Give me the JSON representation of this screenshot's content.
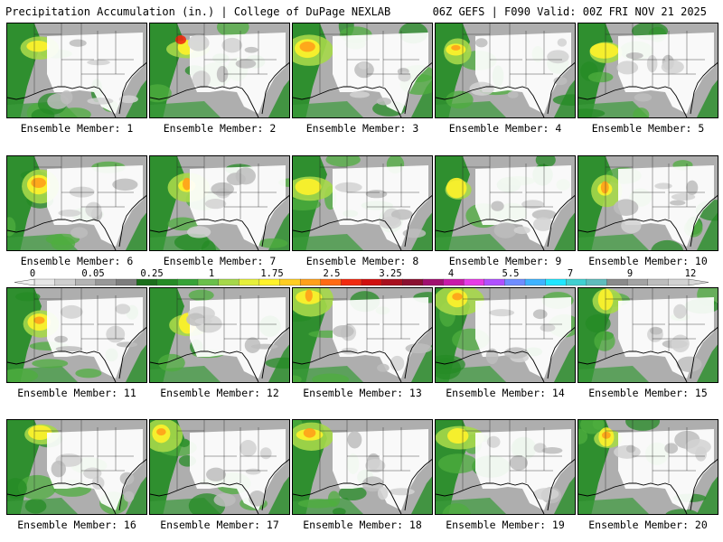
{
  "header": {
    "left": "Precipitation Accumulation (in.) | College of DuPage NEXLAB",
    "right": "06Z GEFS | F090 Valid: 00Z FRI NOV 21 2025"
  },
  "panels": [
    {
      "label": "Ensemble Member: 1"
    },
    {
      "label": "Ensemble Member: 2"
    },
    {
      "label": "Ensemble Member: 3"
    },
    {
      "label": "Ensemble Member: 4"
    },
    {
      "label": "Ensemble Member: 5"
    },
    {
      "label": "Ensemble Member: 6"
    },
    {
      "label": "Ensemble Member: 7"
    },
    {
      "label": "Ensemble Member: 8"
    },
    {
      "label": "Ensemble Member: 9"
    },
    {
      "label": "Ensemble Member: 10"
    },
    {
      "label": "Ensemble Member: 11"
    },
    {
      "label": "Ensemble Member: 12"
    },
    {
      "label": "Ensemble Member: 13"
    },
    {
      "label": "Ensemble Member: 14"
    },
    {
      "label": "Ensemble Member: 15"
    },
    {
      "label": "Ensemble Member: 16"
    },
    {
      "label": "Ensemble Member: 17"
    },
    {
      "label": "Ensemble Member: 18"
    },
    {
      "label": "Ensemble Member: 19"
    },
    {
      "label": "Ensemble Member: 20"
    }
  ],
  "legend": {
    "labels": [
      "0",
      "0.05",
      "0.25",
      "1",
      "1.75",
      "2.5",
      "3.25",
      "4",
      "5.5",
      "7",
      "9",
      "12"
    ],
    "colors": [
      "#e6e6e6",
      "#cfcfcf",
      "#b4b4b4",
      "#989898",
      "#7d7d7d",
      "#1b6e1b",
      "#258b25",
      "#37a337",
      "#6ac04a",
      "#a6d84a",
      "#e6ef3a",
      "#fff22a",
      "#ffcd22",
      "#ffa01a",
      "#ff6a14",
      "#f02a10",
      "#d00f0f",
      "#a80f1e",
      "#8a1030",
      "#a01070",
      "#c81aa8",
      "#e63ce6",
      "#b050ff",
      "#6f8dff",
      "#3fb3ff",
      "#1fe6ff",
      "#40d0d0",
      "#5fbcbc",
      "#8a8a8a",
      "#a3a3a3",
      "#bdbdbd",
      "#d2d2d2"
    ]
  }
}
